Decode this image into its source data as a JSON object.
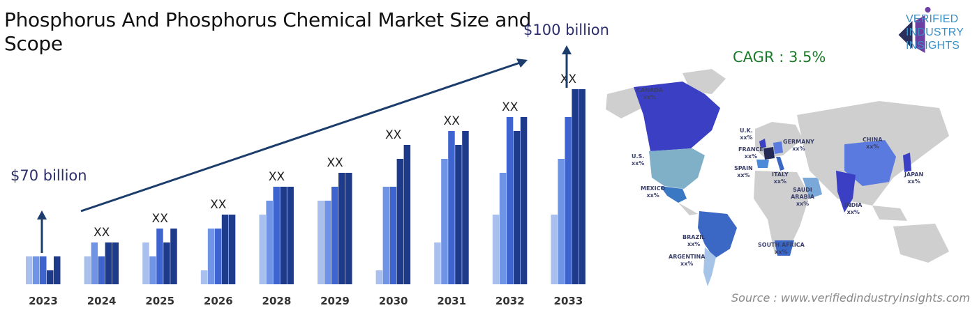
{
  "title": "Phosphorus And Phosphorus Chemical Market Size and Scope",
  "start_value_label": "$70 billion",
  "end_value_label": "$100 billion",
  "cagr_label": "CAGR : 3.5%",
  "source_label": "Source : www.verifiedindustryinsights.com",
  "logo": {
    "line1": "VERIFIED",
    "line2": "INDUSTRY",
    "line3": "INSIGHTS"
  },
  "colors": {
    "c1": "#a9c0ef",
    "c2": "#6f93e5",
    "c3": "#3e64cf",
    "c4": "#1e3a8a",
    "arrow": "#1c3d6b"
  },
  "map_regions": [
    {
      "name": "CANADA",
      "value": "xx%"
    },
    {
      "name": "U.S.",
      "value": "xx%"
    },
    {
      "name": "MEXICO",
      "value": "xx%"
    },
    {
      "name": "BRAZIL",
      "value": "xx%"
    },
    {
      "name": "ARGENTINA",
      "value": "xx%"
    },
    {
      "name": "U.K.",
      "value": "xx%"
    },
    {
      "name": "FRANCE",
      "value": "xx%"
    },
    {
      "name": "GERMANY",
      "value": "xx%"
    },
    {
      "name": "SPAIN",
      "value": "xx%"
    },
    {
      "name": "ITALY",
      "value": "xx%"
    },
    {
      "name": "SAUDI ARABIA",
      "value": "xx%"
    },
    {
      "name": "SOUTH AFRICA",
      "value": "xx%"
    },
    {
      "name": "CHINA",
      "value": "xx%"
    },
    {
      "name": "INDIA",
      "value": "xx%"
    },
    {
      "name": "JAPAN",
      "value": "xx%"
    }
  ],
  "chart_data": {
    "type": "bar",
    "categories": [
      "2023",
      "2024",
      "2025",
      "2026",
      "2028",
      "2029",
      "2030",
      "2031",
      "2032",
      "2033"
    ],
    "value_labels": [
      "",
      "XX",
      "XX",
      "XX",
      "XX",
      "XX",
      "XX",
      "XX",
      "XX",
      "XX"
    ],
    "series": [
      {
        "values": [
          2,
          2,
          3,
          1,
          5,
          6,
          1,
          3,
          5,
          5
        ]
      },
      {
        "values": [
          2,
          3,
          2,
          4,
          6,
          6,
          7,
          9,
          8,
          9
        ]
      },
      {
        "values": [
          2,
          2,
          4,
          4,
          7,
          7,
          7,
          11,
          12,
          12
        ]
      },
      {
        "values": [
          1,
          3,
          3,
          5,
          7,
          8,
          9,
          10,
          11,
          14
        ]
      },
      {
        "values": [
          2,
          3,
          4,
          5,
          7,
          8,
          10,
          11,
          12,
          14
        ]
      }
    ],
    "ylim": [
      0,
      15
    ],
    "annotations": [
      "$70 billion",
      "$100 billion"
    ]
  }
}
